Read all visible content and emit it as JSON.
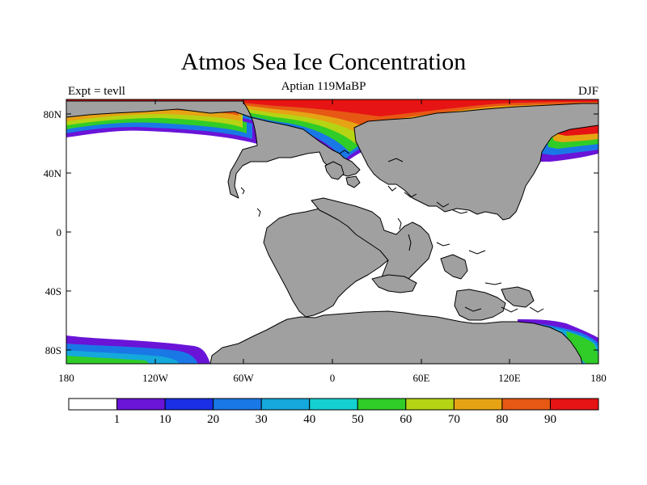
{
  "title": "Atmos Sea Ice Concentration",
  "subtitle": "Aptian  119MaBP",
  "left_label": "Expt = tevll",
  "right_label": "DJF",
  "axes": {
    "y_ticks": [
      "80N",
      "40N",
      "0",
      "40S",
      "80S"
    ],
    "x_ticks": [
      "180",
      "120W",
      "60W",
      "0",
      "60E",
      "120E",
      "180"
    ]
  },
  "colors": {
    "land": "#a0a0a0",
    "ocean": "#ffffff",
    "outline": "#000000"
  },
  "colorbar": {
    "colors": [
      "#ffffff",
      "#6a14d8",
      "#1a2ee6",
      "#1a78e6",
      "#14a8dc",
      "#14d0d0",
      "#30cc28",
      "#b4d414",
      "#e6a414",
      "#e65814",
      "#e61414"
    ],
    "labels": [
      "1",
      "10",
      "20",
      "30",
      "40",
      "50",
      "60",
      "70",
      "80",
      "90"
    ]
  }
}
